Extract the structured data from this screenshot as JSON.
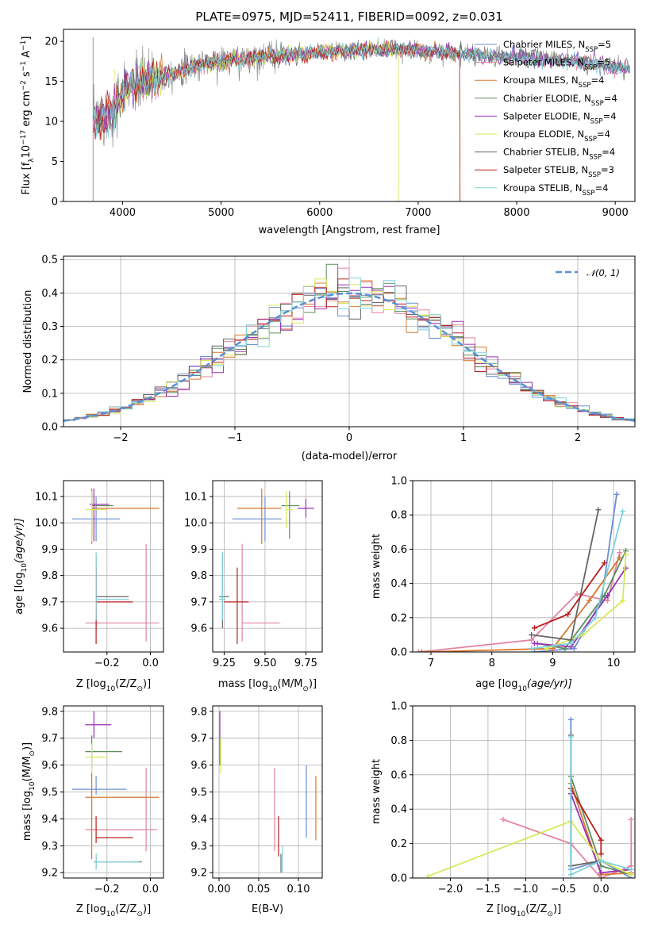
{
  "colors": [
    "#6b8fd6",
    "#e2849e",
    "#d9772f",
    "#5b8f5b",
    "#9a2fb5",
    "#d8e858",
    "#666666",
    "#b81e1e",
    "#7fd3dc"
  ],
  "chart_data": [
    {
      "id": "spectrum",
      "type": "line",
      "title": "PLATE=0975, MJD=52411, FIBERID=0092, z=0.031",
      "xlabel": "wavelength [Angstrom, rest frame]",
      "ylabel_parts": [
        "Flux [f",
        "λ",
        "10",
        "−17",
        " erg cm",
        "−2",
        " s",
        "−1",
        " A",
        "−1",
        "]"
      ],
      "xlim": [
        3400,
        9200
      ],
      "ylim": [
        0,
        21.5
      ],
      "xticks": [
        4000,
        5000,
        6000,
        7000,
        8000,
        9000
      ],
      "yticks": [
        0,
        5,
        10,
        15,
        20
      ],
      "data_color": "#808080",
      "continuum": [
        [
          3700,
          9.5
        ],
        [
          3800,
          10.8
        ],
        [
          3900,
          11.5
        ],
        [
          4000,
          13.5
        ],
        [
          4100,
          14.6
        ],
        [
          4300,
          15.2
        ],
        [
          4500,
          16.0
        ],
        [
          4800,
          17.2
        ],
        [
          5000,
          17.5
        ],
        [
          5200,
          17.8
        ],
        [
          5500,
          18.2
        ],
        [
          6000,
          18.6
        ],
        [
          6500,
          19.0
        ],
        [
          7000,
          18.9
        ],
        [
          7500,
          18.4
        ],
        [
          8000,
          18.0
        ],
        [
          8500,
          17.6
        ],
        [
          9000,
          16.8
        ],
        [
          9150,
          16.6
        ]
      ],
      "legend": [
        {
          "parts": [
            "Chabrier MILES, N",
            "SSP",
            "=5"
          ]
        },
        {
          "parts": [
            "Salpeter MILES, N",
            "SSP",
            "=5"
          ]
        },
        {
          "parts": [
            "Kroupa MILES, N",
            "SSP",
            "=4"
          ]
        },
        {
          "parts": [
            "Chabrier ELODIE, N",
            "SSP",
            "=4"
          ]
        },
        {
          "parts": [
            "Salpeter ELODIE, N",
            "SSP",
            "=4"
          ]
        },
        {
          "parts": [
            "Kroupa ELODIE, N",
            "SSP",
            "=4"
          ]
        },
        {
          "parts": [
            "Chabrier STELIB, N",
            "SSP",
            "=4"
          ]
        },
        {
          "parts": [
            "Salpeter STELIB, N",
            "SSP",
            "=3"
          ]
        },
        {
          "parts": [
            "Kroupa STELIB, N",
            "SSP",
            "=4"
          ]
        }
      ],
      "model_spans": [
        [
          3700,
          9150
        ],
        [
          3700,
          9150
        ],
        [
          3700,
          7420
        ],
        [
          3700,
          9150
        ],
        [
          3700,
          9150
        ],
        [
          3920,
          6800
        ],
        [
          3700,
          9150
        ],
        [
          3700,
          7420
        ],
        [
          3700,
          9150
        ]
      ],
      "legend_position": "upper-right"
    },
    {
      "id": "residuals",
      "type": "histogram",
      "xlabel": "(data-model)/error",
      "ylabel": "Normed distribution",
      "xlim": [
        -2.5,
        2.5
      ],
      "ylim": [
        0,
        0.51
      ],
      "xticks": [
        -2,
        -1,
        0,
        1,
        2
      ],
      "xtick_labels": [
        "−2",
        "−1",
        "0",
        "1",
        "2"
      ],
      "yticks": [
        0.0,
        0.1,
        0.2,
        0.3,
        0.4,
        0.5
      ],
      "ytick_labels": [
        "0.0",
        "0.1",
        "0.2",
        "0.3",
        "0.4",
        "0.5"
      ],
      "bin_width": 0.1,
      "gaussian_label": "𝒩(0, 1)",
      "gaussian_color": "#5a8fd6",
      "legend_position": "upper-right"
    },
    {
      "id": "age-vs-Z",
      "type": "errorbar",
      "xlabel_parts": [
        "Z [log",
        "10",
        "(Z/Z",
        "⊙",
        ")]"
      ],
      "ylabel_parts": [
        "age  [log",
        "10",
        "(age/yr)]"
      ],
      "xlim": [
        -0.4,
        0.06
      ],
      "ylim": [
        9.51,
        10.16
      ],
      "xticks": [
        -0.2,
        0.0
      ],
      "xtick_labels": [
        "−0.2",
        "0.0"
      ],
      "yticks": [
        9.6,
        9.7,
        9.8,
        9.9,
        10.0,
        10.1
      ],
      "points": [
        {
          "c": 0,
          "x": -0.25,
          "y": 10.015,
          "xl": -0.36,
          "xh": -0.14,
          "yl": 9.93,
          "yh": 10.1
        },
        {
          "c": 1,
          "x": -0.02,
          "y": 9.62,
          "xl": -0.3,
          "xh": 0.04,
          "yl": 9.55,
          "yh": 9.92
        },
        {
          "c": 2,
          "x": -0.27,
          "y": 10.055,
          "xl": -0.27,
          "xh": 0.04,
          "yl": 9.92,
          "yh": 10.13
        },
        {
          "c": 3,
          "x": -0.27,
          "y": 10.065,
          "xl": -0.27,
          "xh": -0.17,
          "yl": 9.94,
          "yh": 10.12
        },
        {
          "c": 4,
          "x": -0.26,
          "y": 10.07,
          "xl": -0.28,
          "xh": -0.19,
          "yl": 9.93,
          "yh": 10.13
        },
        {
          "c": 5,
          "x": -0.27,
          "y": 10.05,
          "xl": -0.3,
          "xh": -0.2,
          "yl": 9.93,
          "yh": 10.12
        },
        {
          "c": 6,
          "x": -0.25,
          "y": 9.72,
          "xl": -0.25,
          "xh": -0.1,
          "yl": 9.6,
          "yh": 9.88
        },
        {
          "c": 7,
          "x": -0.25,
          "y": 9.7,
          "xl": -0.25,
          "xh": -0.08,
          "yl": 9.54,
          "yh": 9.83
        },
        {
          "c": 8,
          "x": -0.25,
          "y": 9.71,
          "xl": -0.25,
          "xh": -0.1,
          "yl": 9.63,
          "yh": 9.89
        }
      ]
    },
    {
      "id": "age-vs-mass",
      "type": "errorbar",
      "xlabel_parts": [
        "mass [log",
        "10",
        "(M/M",
        "⊙",
        ")]"
      ],
      "xlim": [
        9.18,
        9.85
      ],
      "ylim": [
        9.51,
        10.16
      ],
      "xticks": [
        9.25,
        9.5,
        9.75
      ],
      "xtick_labels": [
        "9.25",
        "9.50",
        "9.75"
      ],
      "yticks": [
        9.6,
        9.7,
        9.8,
        9.9,
        10.0,
        10.1
      ],
      "points": [
        {
          "c": 0,
          "x": 9.5,
          "y": 10.015,
          "xl": 9.3,
          "xh": 9.6,
          "yl": 9.93,
          "yh": 10.1
        },
        {
          "c": 1,
          "x": 9.36,
          "y": 9.62,
          "xl": 9.36,
          "xh": 9.59,
          "yl": 9.55,
          "yh": 9.92
        },
        {
          "c": 2,
          "x": 9.48,
          "y": 10.055,
          "xl": 9.33,
          "xh": 9.6,
          "yl": 9.92,
          "yh": 10.13
        },
        {
          "c": 3,
          "x": 9.65,
          "y": 10.065,
          "xl": 9.6,
          "xh": 9.71,
          "yl": 9.94,
          "yh": 10.12
        },
        {
          "c": 4,
          "x": 9.75,
          "y": 10.055,
          "xl": 9.7,
          "xh": 9.8,
          "yl": 10.02,
          "yh": 10.09
        },
        {
          "c": 5,
          "x": 9.63,
          "y": 10.05,
          "xl": 9.63,
          "xh": 9.67,
          "yl": 9.98,
          "yh": 10.12
        },
        {
          "c": 6,
          "x": 9.24,
          "y": 9.72,
          "xl": 9.22,
          "xh": 9.28,
          "yl": 9.6,
          "yh": 9.88
        },
        {
          "c": 7,
          "x": 9.33,
          "y": 9.7,
          "xl": 9.25,
          "xh": 9.4,
          "yl": 9.54,
          "yh": 9.83
        },
        {
          "c": 8,
          "x": 9.24,
          "y": 9.71,
          "xl": 9.22,
          "xh": 9.26,
          "yl": 9.63,
          "yh": 9.89
        }
      ]
    },
    {
      "id": "weight-vs-age",
      "type": "line",
      "xlabel_parts": [
        "age  [log",
        "10",
        "(age/yr)]"
      ],
      "ylabel": "mass weight",
      "xlim": [
        6.7,
        10.35
      ],
      "ylim": [
        0,
        1
      ],
      "xticks": [
        7,
        8,
        9,
        10
      ],
      "xtick_labels": [
        "7",
        "8",
        "9",
        "10"
      ],
      "yticks": [
        0.0,
        0.2,
        0.4,
        0.6,
        0.8,
        1.0
      ],
      "series": [
        {
          "c": 0,
          "x": [
            8.7,
            9.35,
            9.8,
            10.05
          ],
          "y": [
            0.0,
            0.02,
            0.3,
            0.92
          ]
        },
        {
          "c": 1,
          "x": [
            6.8,
            8.65,
            9.4,
            9.9,
            10.1
          ],
          "y": [
            0.0,
            0.07,
            0.34,
            0.3,
            0.58
          ]
        },
        {
          "c": 2,
          "x": [
            6.85,
            9.0,
            9.6,
            10.1
          ],
          "y": [
            0.0,
            0.02,
            0.3,
            0.55
          ]
        },
        {
          "c": 3,
          "x": [
            8.75,
            9.2,
            9.85,
            10.2
          ],
          "y": [
            0.05,
            0.02,
            0.33,
            0.59
          ]
        },
        {
          "c": 4,
          "x": [
            8.7,
            9.3,
            9.9,
            10.2
          ],
          "y": [
            0.05,
            0.03,
            0.33,
            0.49
          ]
        },
        {
          "c": 5,
          "x": [
            8.9,
            9.5,
            10.15,
            10.2
          ],
          "y": [
            0.02,
            0.1,
            0.3,
            0.57
          ]
        },
        {
          "c": 6,
          "x": [
            8.65,
            9.3,
            9.75
          ],
          "y": [
            0.1,
            0.07,
            0.83
          ]
        },
        {
          "c": 7,
          "x": [
            8.7,
            9.25,
            9.85
          ],
          "y": [
            0.14,
            0.22,
            0.52
          ]
        },
        {
          "c": 8,
          "x": [
            8.65,
            9.3,
            9.7,
            10.15
          ],
          "y": [
            0.02,
            0.05,
            0.2,
            0.82
          ]
        }
      ]
    },
    {
      "id": "mass-vs-Z",
      "type": "errorbar",
      "xlabel_parts": [
        "Z [log",
        "10",
        "(Z/Z",
        "⊙",
        ")]"
      ],
      "ylabel_parts": [
        "mass [log",
        "10",
        "(M/M",
        "⊙",
        ")]"
      ],
      "xlim": [
        -0.4,
        0.06
      ],
      "ylim": [
        9.18,
        9.82
      ],
      "xticks": [
        -0.2,
        0.0
      ],
      "xtick_labels": [
        "−0.2",
        "0.0"
      ],
      "yticks": [
        9.2,
        9.3,
        9.4,
        9.5,
        9.6,
        9.7,
        9.8
      ],
      "points": [
        {
          "c": 0,
          "x": -0.25,
          "y": 9.51,
          "xl": -0.36,
          "xh": -0.11,
          "yl": 9.49,
          "yh": 9.56
        },
        {
          "c": 1,
          "x": -0.02,
          "y": 9.36,
          "xl": -0.3,
          "xh": 0.03,
          "yl": 9.28,
          "yh": 9.59
        },
        {
          "c": 2,
          "x": -0.27,
          "y": 9.48,
          "xl": -0.3,
          "xh": 0.04,
          "yl": 9.25,
          "yh": 9.58
        },
        {
          "c": 3,
          "x": -0.27,
          "y": 9.65,
          "xl": -0.3,
          "xh": -0.13,
          "yl": 9.59,
          "yh": 9.71
        },
        {
          "c": 4,
          "x": -0.26,
          "y": 9.75,
          "xl": -0.3,
          "xh": -0.18,
          "yl": 9.7,
          "yh": 9.8
        },
        {
          "c": 5,
          "x": -0.27,
          "y": 9.63,
          "xl": -0.3,
          "xh": -0.2,
          "yl": 9.57,
          "yh": 9.68
        },
        {
          "c": 6,
          "x": -0.25,
          "y": 9.24,
          "xl": -0.26,
          "xh": -0.04,
          "yl": 9.22,
          "yh": 9.27
        },
        {
          "c": 7,
          "x": -0.25,
          "y": 9.33,
          "xl": -0.25,
          "xh": -0.08,
          "yl": 9.31,
          "yh": 9.41
        },
        {
          "c": 8,
          "x": -0.25,
          "y": 9.24,
          "xl": -0.26,
          "xh": -0.05,
          "yl": 9.21,
          "yh": 9.27
        }
      ]
    },
    {
      "id": "mass-vs-ebv",
      "type": "errorbar",
      "xlabel": "E(B-V)",
      "xlim": [
        -0.008,
        0.13
      ],
      "ylim": [
        9.18,
        9.82
      ],
      "xticks": [
        0.0,
        0.05,
        0.1
      ],
      "xtick_labels": [
        "0.00",
        "0.05",
        "0.10"
      ],
      "yticks": [
        9.2,
        9.3,
        9.4,
        9.5,
        9.6,
        9.7,
        9.8
      ],
      "points": [
        {
          "c": 0,
          "x": 0.11,
          "y": 9.51,
          "yl": 9.33,
          "yh": 9.6
        },
        {
          "c": 1,
          "x": 0.07,
          "y": 9.36,
          "yl": 9.28,
          "yh": 9.59
        },
        {
          "c": 2,
          "x": 0.122,
          "y": 9.48,
          "yl": 9.32,
          "yh": 9.56
        },
        {
          "c": 3,
          "x": 0.001,
          "y": 9.65,
          "yl": 9.6,
          "yh": 9.7
        },
        {
          "c": 4,
          "x": 0.001,
          "y": 9.75,
          "yl": 9.7,
          "yh": 9.8
        },
        {
          "c": 5,
          "x": 0.002,
          "y": 9.63,
          "yl": 9.57,
          "yh": 9.7
        },
        {
          "c": 6,
          "x": 0.078,
          "y": 9.24,
          "yl": 9.2,
          "yh": 9.27
        },
        {
          "c": 7,
          "x": 0.075,
          "y": 9.33,
          "yl": 9.26,
          "yh": 9.41
        },
        {
          "c": 8,
          "x": 0.08,
          "y": 9.24,
          "yl": 9.2,
          "yh": 9.3
        }
      ]
    },
    {
      "id": "weight-vs-Z",
      "type": "line",
      "xlabel_parts": [
        "Z [log",
        "10",
        "(Z/Z",
        "⊙",
        ")]"
      ],
      "ylabel": "mass weight",
      "xlim": [
        -2.5,
        0.45
      ],
      "ylim": [
        0,
        1
      ],
      "xticks": [
        -2.0,
        -1.5,
        -1.0,
        -0.5,
        0.0
      ],
      "xtick_labels": [
        "−2.0",
        "−1.5",
        "−1.0",
        "−0.5",
        "0.0"
      ],
      "yticks": [
        0.0,
        0.2,
        0.4,
        0.6,
        0.8,
        1.0
      ],
      "series": [
        {
          "c": 0,
          "x": [
            -0.4,
            -0.4,
            0.0,
            0.4
          ],
          "y": [
            0.92,
            0.05,
            0.1,
            0.0
          ]
        },
        {
          "c": 1,
          "x": [
            -1.3,
            -0.4,
            0.0,
            0.4,
            0.4
          ],
          "y": [
            0.34,
            0.2,
            0.0,
            0.07,
            0.34
          ]
        },
        {
          "c": 2,
          "x": [
            -0.4,
            0.0,
            0.4
          ],
          "y": [
            0.55,
            0.02,
            0.03
          ]
        },
        {
          "c": 3,
          "x": [
            -0.4,
            0.0,
            0.4
          ],
          "y": [
            0.59,
            0.07,
            0.02
          ]
        },
        {
          "c": 4,
          "x": [
            -0.4,
            0.0,
            0.4
          ],
          "y": [
            0.49,
            0.03,
            0.05
          ]
        },
        {
          "c": 5,
          "x": [
            -2.3,
            -0.4,
            0.0,
            0.4
          ],
          "y": [
            0.01,
            0.33,
            0.1,
            0.02
          ]
        },
        {
          "c": 6,
          "x": [
            -0.4,
            -0.4,
            0.0
          ],
          "y": [
            0.83,
            0.07,
            0.1
          ]
        },
        {
          "c": 7,
          "x": [
            -0.4,
            0.0,
            0.0
          ],
          "y": [
            0.52,
            0.22,
            0.14
          ]
        },
        {
          "c": 8,
          "x": [
            -0.4,
            -0.4,
            0.0,
            0.4
          ],
          "y": [
            0.82,
            0.02,
            0.1,
            0.05
          ]
        }
      ]
    }
  ]
}
